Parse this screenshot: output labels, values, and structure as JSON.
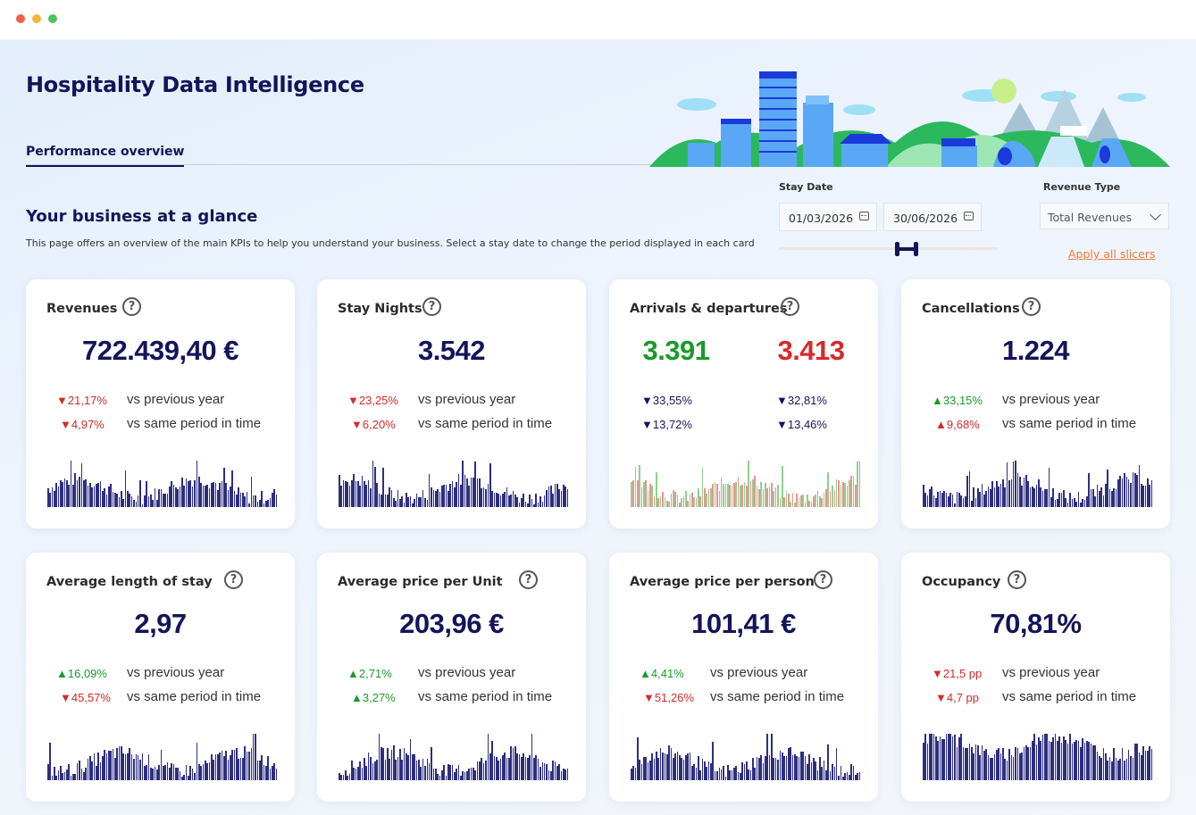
{
  "window": {
    "controls": [
      "close",
      "minimize",
      "maximize"
    ]
  },
  "header": {
    "title": "Hospitality Data Intelligence",
    "tab": "Performance overview"
  },
  "section": {
    "title": "Your business at a glance",
    "description": "This page offers an overview of the main KPIs to help you understand your business. Select a stay date to change the period displayed in each card"
  },
  "filters": {
    "stay_date_label": "Stay Date",
    "start_date": "01/03/2026",
    "end_date": "30/06/2026",
    "revenue_type_label": "Revenue Type",
    "revenue_type": "Total Revenues",
    "apply_label": "Apply all slicers"
  },
  "colors": {
    "navy": "#14145a",
    "up": "#1a9a2a",
    "down": "#d62a2a",
    "accent": "#f07a3a"
  },
  "cards": [
    {
      "title": "Revenues",
      "value": "722.439,40 €",
      "deltas": [
        {
          "dir": "down",
          "value": "21,17%",
          "label": "vs previous year"
        },
        {
          "dir": "down",
          "value": "4,97%",
          "label": "vs same period in time"
        }
      ]
    },
    {
      "title": "Stay Nights",
      "value": "3.542",
      "deltas": [
        {
          "dir": "down",
          "value": "23,25%",
          "label": "vs previous year"
        },
        {
          "dir": "down",
          "value": "6,20%",
          "label": "vs same period in time"
        }
      ]
    },
    {
      "title": "Arrivals & departures",
      "arrivals": "3.391",
      "departures": "3.413",
      "arrival_deltas": [
        "33,55%",
        "13,72%"
      ],
      "departure_deltas": [
        "32,81%",
        "13,46%"
      ]
    },
    {
      "title": "Cancellations",
      "value": "1.224",
      "deltas": [
        {
          "dir": "up",
          "value": "33,15%",
          "label": "vs previous year",
          "color": "up"
        },
        {
          "dir": "up",
          "value": "9,68%",
          "label": "vs same period in time",
          "color": "down"
        }
      ]
    },
    {
      "title": "Average length of stay",
      "value": "2,97",
      "deltas": [
        {
          "dir": "up",
          "value": "16,09%",
          "label": "vs previous year"
        },
        {
          "dir": "down",
          "value": "45,57%",
          "label": "vs same period in time"
        }
      ]
    },
    {
      "title": "Average price per Unit",
      "value": "203,96 €",
      "deltas": [
        {
          "dir": "up",
          "value": "2,71%",
          "label": "vs previous year"
        },
        {
          "dir": "up",
          "value": "3,27%",
          "label": "vs same period in time"
        }
      ]
    },
    {
      "title": "Average price per person",
      "value": "101,41 €",
      "deltas": [
        {
          "dir": "up",
          "value": "4,41%",
          "label": "vs previous year"
        },
        {
          "dir": "down",
          "value": "51,26%",
          "label": "vs same period in time"
        }
      ]
    },
    {
      "title": "Occupancy",
      "value": "70,81%",
      "deltas": [
        {
          "dir": "down",
          "value": "21,5 pp",
          "label": "vs previous year"
        },
        {
          "dir": "down",
          "value": "4,7 pp",
          "label": "vs same period in time"
        }
      ]
    }
  ]
}
